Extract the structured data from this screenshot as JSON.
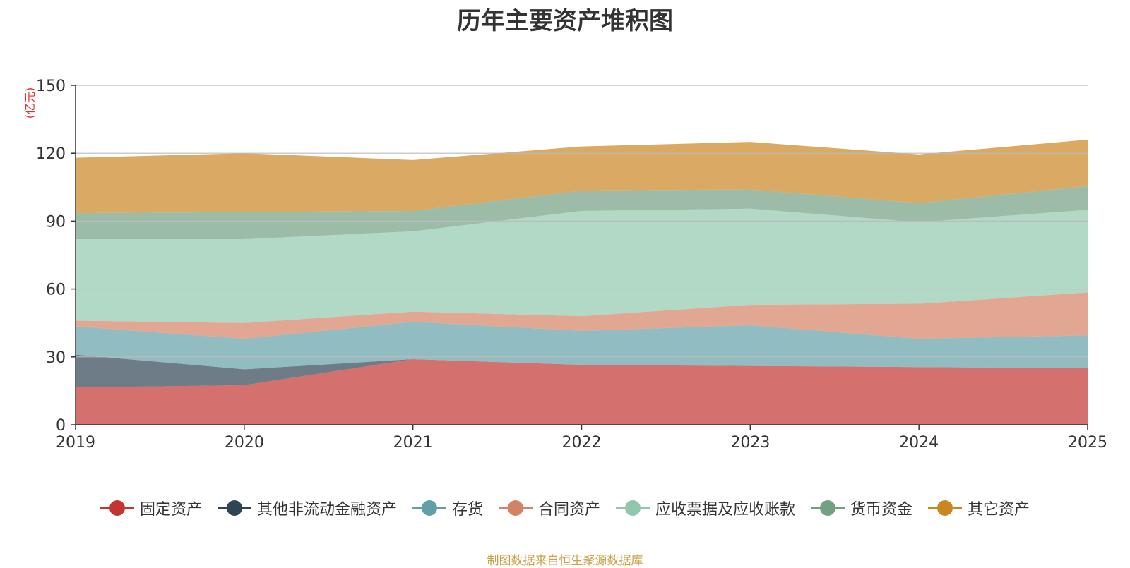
{
  "chart_data": {
    "type": "area",
    "stacked": true,
    "title": "历年主要资产堆积图",
    "ylabel": "(亿元)",
    "xlabel": "",
    "ylim": [
      0,
      150
    ],
    "yticks": [
      0,
      30,
      60,
      90,
      120,
      150
    ],
    "categories": [
      "2019",
      "2020",
      "2021",
      "2022",
      "2023",
      "2024",
      "2025"
    ],
    "grid": true,
    "legend_position": "bottom",
    "series": [
      {
        "name": "固定资产",
        "color": "#c23531",
        "values": [
          16.5,
          17.5,
          29,
          26.5,
          26,
          25.5,
          25
        ]
      },
      {
        "name": "其他非流动金融资产",
        "color": "#2f4554",
        "values": [
          14.5,
          7,
          0,
          0,
          0,
          0,
          0
        ]
      },
      {
        "name": "存货",
        "color": "#61a0a8",
        "values": [
          12.5,
          13.5,
          16.5,
          15,
          18,
          12.5,
          14.5
        ]
      },
      {
        "name": "合同资产",
        "color": "#d48265",
        "values": [
          2.5,
          7,
          4.5,
          6.5,
          9,
          15.5,
          19
        ]
      },
      {
        "name": "应收票据及应收账款",
        "color": "#91c7ae",
        "values": [
          36,
          37,
          35.5,
          46.5,
          42.5,
          36,
          36.5
        ]
      },
      {
        "name": "货币资金",
        "color": "#749f83",
        "values": [
          11.5,
          12,
          9,
          9,
          8.5,
          8.5,
          10.5
        ]
      },
      {
        "name": "其它资产",
        "color": "#ca8622",
        "values": [
          24.5,
          26,
          22.5,
          19.5,
          21,
          21.5,
          20.5
        ]
      }
    ]
  },
  "source_text": "制图数据来自恒生聚源数据库"
}
